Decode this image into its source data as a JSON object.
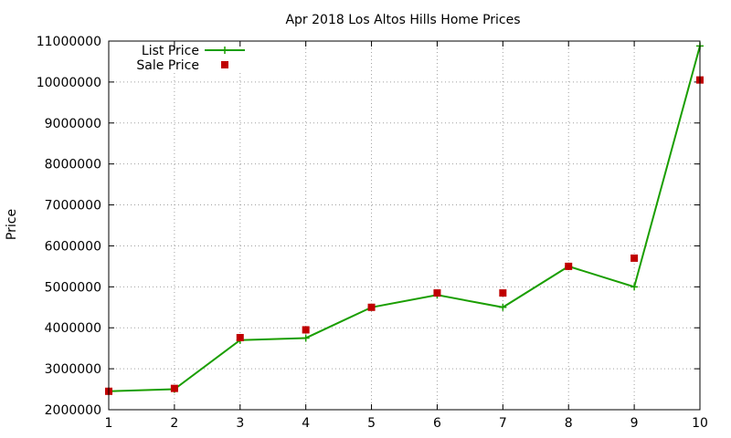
{
  "chart_data": {
    "type": "line",
    "title": "Apr 2018 Los Altos Hills Home Prices",
    "xlabel": "",
    "ylabel": "Price",
    "x": [
      1,
      2,
      3,
      4,
      5,
      6,
      7,
      8,
      9,
      10
    ],
    "xlim": [
      1,
      10
    ],
    "ylim": [
      2000000,
      11000000
    ],
    "x_ticks": [
      "1",
      "2",
      "3",
      "4",
      "5",
      "6",
      "7",
      "8",
      "9",
      "10"
    ],
    "y_ticks": [
      "2000000",
      "3000000",
      "4000000",
      "5000000",
      "6000000",
      "7000000",
      "8000000",
      "9000000",
      "10000000",
      "11000000"
    ],
    "grid": true,
    "legend_position": "top-left",
    "series": [
      {
        "name": "List Price",
        "style": "line-plus",
        "color": "#1a9e00",
        "values": [
          2450000,
          2500000,
          3700000,
          3750000,
          4500000,
          4800000,
          4500000,
          5500000,
          5000000,
          10880000
        ]
      },
      {
        "name": "Sale Price",
        "style": "square",
        "color": "#c00000",
        "values": [
          2450000,
          2520000,
          3760000,
          3950000,
          4500000,
          4850000,
          4850000,
          5500000,
          5700000,
          10050000
        ]
      }
    ]
  }
}
